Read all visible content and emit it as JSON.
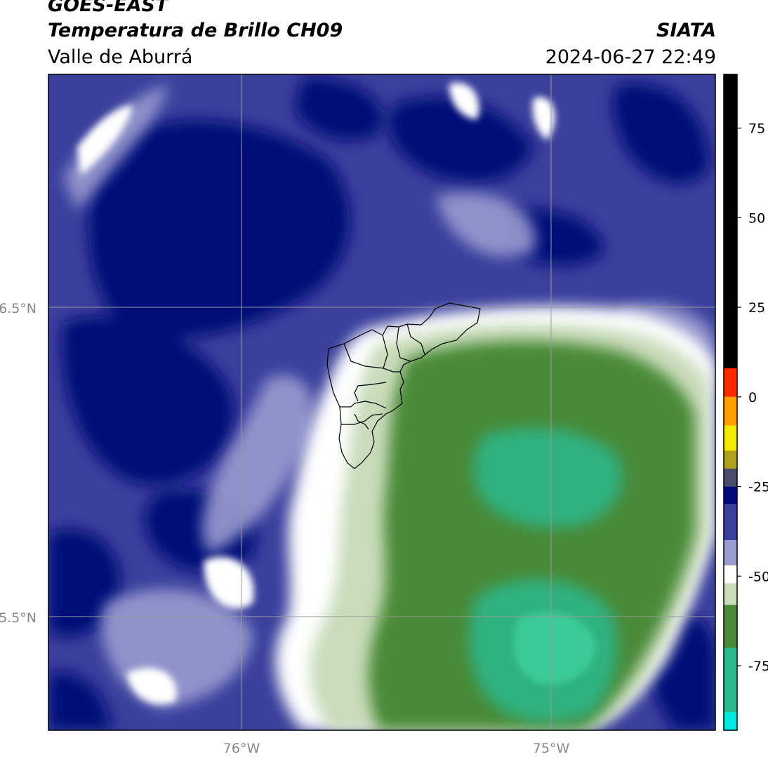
{
  "header": {
    "satellite": "GOES-EAST",
    "product": "Temperatura de Brillo CH09",
    "region": "Valle de Aburrá",
    "organization": "SIATA",
    "datetime": "2024-06-27 22:49"
  },
  "map": {
    "lat_labels": [
      "6.5°N",
      "5.5°N"
    ],
    "lon_labels": [
      "76°W",
      "75°W"
    ],
    "colors": {
      "deep_blue": "#000a78",
      "mid_blue": "#3a3f9c",
      "light_blue": "#8a8cc4",
      "white": "#ffffff",
      "pale_green": "#c9dcbb",
      "green": "#4a8a38",
      "teal": "#2ab88c",
      "gridline": "#9a9a9a"
    }
  },
  "colorbar": {
    "tick_labels": [
      "75",
      "50",
      "25",
      "0",
      "-25",
      "-50",
      "-75"
    ],
    "tick_values": [
      75,
      50,
      25,
      0,
      -25,
      -50,
      -75
    ],
    "range": [
      -93,
      90
    ],
    "segments": [
      {
        "from": 8,
        "to": 90,
        "color": "#000000"
      },
      {
        "from": 0,
        "to": 8,
        "color": "#ff2a00"
      },
      {
        "from": -8,
        "to": 0,
        "color": "#ffa000"
      },
      {
        "from": -15,
        "to": -8,
        "color": "#f2ea00"
      },
      {
        "from": -20,
        "to": -15,
        "color": "#b0a020"
      },
      {
        "from": -25,
        "to": -20,
        "color": "#4a4a6a"
      },
      {
        "from": -30,
        "to": -25,
        "color": "#000a78"
      },
      {
        "from": -40,
        "to": -30,
        "color": "#3a3f9c"
      },
      {
        "from": -47,
        "to": -40,
        "color": "#9a9cd0"
      },
      {
        "from": -52,
        "to": -47,
        "color": "#ffffff"
      },
      {
        "from": -58,
        "to": -52,
        "color": "#c9dcbb"
      },
      {
        "from": -70,
        "to": -58,
        "color": "#4a8a38"
      },
      {
        "from": -88,
        "to": -70,
        "color": "#2ab88c"
      },
      {
        "from": -93,
        "to": -88,
        "color": "#00e8e0"
      }
    ]
  }
}
